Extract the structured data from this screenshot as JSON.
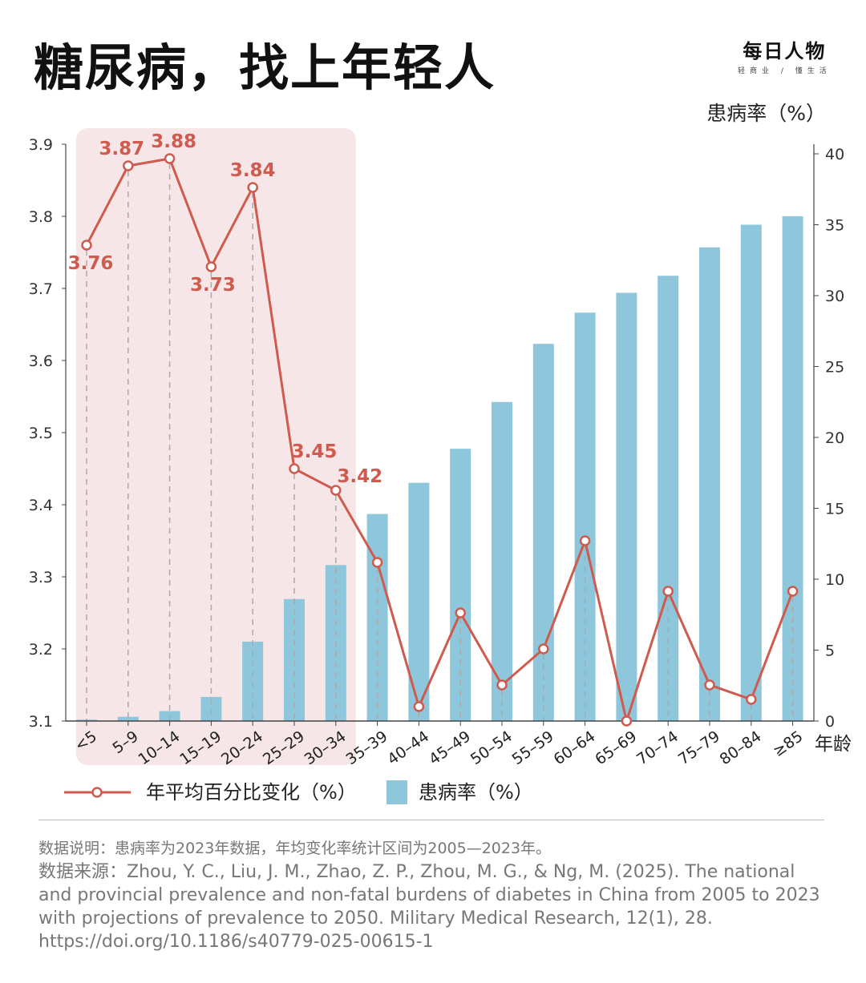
{
  "header": {
    "title": "糖尿病，找上年轻人",
    "logo_main": "每日人物",
    "logo_sub": "轻商业 / 懂生活"
  },
  "colors": {
    "line": "#cf5a4e",
    "bar": "#8ec6db",
    "highlight": "#f6e6e8",
    "axis": "#444444",
    "guide": "#aaaaaa"
  },
  "chart_data": {
    "type": "bar+line",
    "categories": [
      "<5",
      "5–9",
      "10–14",
      "15–19",
      "20–24",
      "25–29",
      "30–34",
      "35–39",
      "40–44",
      "45–49",
      "50–54",
      "55–59",
      "60–64",
      "65–69",
      "70–74",
      "75–79",
      "80–84",
      "≥85"
    ],
    "xlabel": "年龄",
    "y_left": {
      "range": [
        3.1,
        3.9
      ],
      "ticks": [
        "3.1",
        "3.2",
        "3.3",
        "3.4",
        "3.5",
        "3.6",
        "3.7",
        "3.8",
        "3.9"
      ]
    },
    "y_right": {
      "label": "患病率（%）",
      "range": [
        0,
        40
      ],
      "ticks": [
        "0",
        "5",
        "10",
        "15",
        "20",
        "25",
        "30",
        "35",
        "40"
      ]
    },
    "highlight_range": [
      "<5",
      "30–34"
    ],
    "series": [
      {
        "name": "年平均百分比变化（%）",
        "type": "line",
        "axis": "left",
        "values": [
          3.76,
          3.87,
          3.88,
          3.73,
          3.84,
          3.45,
          3.42,
          3.32,
          3.12,
          3.25,
          3.15,
          3.2,
          3.35,
          3.1,
          3.28,
          3.15,
          3.13,
          3.28
        ],
        "labels": [
          "3.76",
          "3.87",
          "3.88",
          "3.73",
          "3.84",
          "3.45",
          "3.42",
          null,
          null,
          null,
          null,
          null,
          null,
          null,
          null,
          null,
          null,
          null
        ]
      },
      {
        "name": "患病率（%）",
        "type": "bar",
        "axis": "right",
        "values": [
          0.1,
          0.3,
          0.7,
          1.7,
          5.6,
          8.6,
          11.0,
          14.6,
          16.8,
          19.2,
          22.5,
          26.6,
          28.8,
          30.2,
          31.4,
          33.4,
          35.0,
          35.6
        ]
      }
    ],
    "legend_placement": "bottom-left",
    "grid": false
  },
  "notes": {
    "line1": "数据说明：患病率为2023年数据，年均变化率统计区间为2005—2023年。",
    "line2": "数据来源：Zhou, Y. C., Liu, J. M., Zhao, Z. P., Zhou, M. G., & Ng, M. (2025). The national and provincial prevalence and non-fatal burdens of diabetes in China from 2005 to 2023 with projections of prevalence to 2050. Military Medical Research, 12(1), 28. https://doi.org/10.1186/s40779-025-00615-1"
  }
}
